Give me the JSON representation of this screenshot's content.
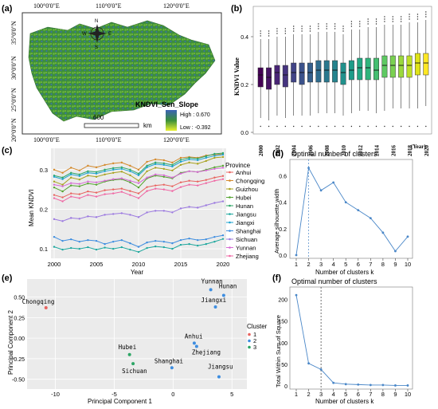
{
  "panel_a": {
    "letter": "(a)",
    "lon_labels": [
      "100°0'0\"E",
      "110°0'0\"E",
      "120°0'0\"E"
    ],
    "lat_labels": [
      "35°0'0\"N",
      "30°0'0\"N",
      "25°0'0\"N",
      "20°0'0\"N"
    ],
    "legend_title": "KNDVI_Sen_Slope",
    "legend_high": "High : 0.670",
    "legend_low": "Low : -0.392",
    "scale_value": "600",
    "scale_unit": "km",
    "compass_letters": [
      "N",
      "S",
      "W",
      "E"
    ],
    "colors": {
      "high": "#3b63b6",
      "mid": "#3a8f3a",
      "low": "#e8f030"
    }
  },
  "panel_b": {
    "letter": "(b)",
    "ylabel": "KNDVI Value",
    "xunit": "(Year)",
    "yticks": [
      "0.4",
      "0.2",
      "0.0"
    ],
    "years_labeled": [
      "2000",
      "2002",
      "2004",
      "2006",
      "2008",
      "2010",
      "2012",
      "2014",
      "2016",
      "2018",
      "2020"
    ]
  },
  "panel_c": {
    "letter": "(c)",
    "xlabel": "Year",
    "ylabel": "Mean KNDVI",
    "legend_title": "Province",
    "xticks": [
      "2000",
      "2005",
      "2010",
      "2015",
      "2020"
    ],
    "yticks": [
      "0.1",
      "0.2",
      "0.3"
    ]
  },
  "panel_d": {
    "letter": "(d)",
    "title": "Optimal number of clusters",
    "xlabel": "Number of clusters k",
    "ylabel": "Average silhouette width",
    "xticks": [
      "1",
      "2",
      "3",
      "4",
      "5",
      "6",
      "7",
      "8",
      "9",
      "10"
    ],
    "yticks": [
      "0.0",
      "0.2",
      "0.4",
      "0.6"
    ]
  },
  "panel_e": {
    "letter": "(e)",
    "xlabel": "Principal Component 1",
    "ylabel": "Principal Component 2",
    "legend_title": "Cluster",
    "xticks": [
      "-10",
      "-5",
      "0",
      "5"
    ],
    "yticks": [
      "0.50",
      "0.25",
      "0.00",
      "-0.25",
      "-0.50"
    ]
  },
  "panel_f": {
    "letter": "(f)",
    "title": "Optimal number of clusters",
    "xlabel": "Number of clusters k",
    "ylabel": "Total Within Sum of Square",
    "xticks": [
      "1",
      "2",
      "3",
      "4",
      "5",
      "6",
      "7",
      "8",
      "9",
      "10"
    ],
    "yticks": [
      "0",
      "50",
      "100",
      "150",
      "200"
    ]
  },
  "chart_data": [
    {
      "id": "b",
      "type": "box",
      "categories": [
        "2000",
        "2001",
        "2002",
        "2003",
        "2004",
        "2005",
        "2006",
        "2007",
        "2008",
        "2009",
        "2010",
        "2011",
        "2012",
        "2013",
        "2014",
        "2015",
        "2016",
        "2017",
        "2018",
        "2019",
        "2020"
      ],
      "median": [
        0.24,
        0.23,
        0.25,
        0.24,
        0.25,
        0.25,
        0.25,
        0.26,
        0.26,
        0.26,
        0.25,
        0.26,
        0.27,
        0.27,
        0.26,
        0.28,
        0.28,
        0.28,
        0.28,
        0.29,
        0.29
      ],
      "q1": [
        0.19,
        0.18,
        0.2,
        0.19,
        0.21,
        0.2,
        0.21,
        0.21,
        0.21,
        0.21,
        0.2,
        0.22,
        0.22,
        0.22,
        0.22,
        0.23,
        0.23,
        0.23,
        0.23,
        0.24,
        0.24
      ],
      "q3": [
        0.27,
        0.27,
        0.28,
        0.28,
        0.29,
        0.29,
        0.29,
        0.3,
        0.3,
        0.3,
        0.29,
        0.3,
        0.31,
        0.31,
        0.31,
        0.32,
        0.32,
        0.32,
        0.32,
        0.33,
        0.33
      ],
      "whisker_low": [
        0.06,
        0.05,
        0.07,
        0.06,
        0.07,
        0.07,
        0.07,
        0.08,
        0.08,
        0.08,
        0.07,
        0.08,
        0.09,
        0.09,
        0.08,
        0.09,
        0.1,
        0.1,
        0.1,
        0.1,
        0.11
      ],
      "whisker_high": [
        0.39,
        0.39,
        0.4,
        0.4,
        0.41,
        0.41,
        0.41,
        0.42,
        0.42,
        0.42,
        0.41,
        0.43,
        0.43,
        0.44,
        0.44,
        0.45,
        0.45,
        0.45,
        0.46,
        0.46,
        0.47
      ],
      "colors": [
        "#440154",
        "#471365",
        "#482475",
        "#463480",
        "#414487",
        "#3b528b",
        "#355f8d",
        "#2f6c8e",
        "#2a788e",
        "#25848e",
        "#21918c",
        "#1e9c89",
        "#22a884",
        "#2fb47c",
        "#44bf70",
        "#5ec962",
        "#7ad151",
        "#9bd93c",
        "#bddf26",
        "#dfe318",
        "#fde725"
      ],
      "ylim": [
        0,
        0.52
      ]
    },
    {
      "id": "c",
      "type": "line",
      "x": [
        2000,
        2001,
        2002,
        2003,
        2004,
        2005,
        2006,
        2007,
        2008,
        2009,
        2010,
        2011,
        2012,
        2013,
        2014,
        2015,
        2016,
        2017,
        2018,
        2019,
        2020
      ],
      "series": [
        {
          "name": "Anhui",
          "color": "#e8635f",
          "values": [
            0.236,
            0.23,
            0.24,
            0.238,
            0.245,
            0.242,
            0.248,
            0.25,
            0.252,
            0.246,
            0.24,
            0.256,
            0.26,
            0.262,
            0.258,
            0.268,
            0.272,
            0.27,
            0.274,
            0.28,
            0.284
          ]
        },
        {
          "name": "Chongqing",
          "color": "#d4892a",
          "values": [
            0.3,
            0.292,
            0.305,
            0.298,
            0.31,
            0.306,
            0.312,
            0.316,
            0.318,
            0.31,
            0.3,
            0.32,
            0.326,
            0.324,
            0.318,
            0.33,
            0.332,
            0.33,
            0.336,
            0.338,
            0.34
          ]
        },
        {
          "name": "Guizhou",
          "color": "#a8a21f",
          "values": [
            0.27,
            0.262,
            0.28,
            0.275,
            0.285,
            0.282,
            0.288,
            0.292,
            0.295,
            0.286,
            0.272,
            0.296,
            0.305,
            0.302,
            0.298,
            0.312,
            0.318,
            0.315,
            0.322,
            0.33,
            0.332
          ]
        },
        {
          "name": "Hubei",
          "color": "#53a32f",
          "values": [
            0.255,
            0.245,
            0.26,
            0.258,
            0.265,
            0.262,
            0.27,
            0.274,
            0.276,
            0.268,
            0.255,
            0.278,
            0.285,
            0.282,
            0.278,
            0.292,
            0.296,
            0.294,
            0.3,
            0.306,
            0.31
          ]
        },
        {
          "name": "Hunan",
          "color": "#2ca665",
          "values": [
            0.285,
            0.28,
            0.292,
            0.288,
            0.296,
            0.294,
            0.3,
            0.304,
            0.306,
            0.3,
            0.29,
            0.31,
            0.318,
            0.316,
            0.312,
            0.325,
            0.33,
            0.328,
            0.334,
            0.34,
            0.342
          ]
        },
        {
          "name": "Jiangsu",
          "color": "#1fa89e",
          "values": [
            0.105,
            0.098,
            0.102,
            0.1,
            0.104,
            0.098,
            0.103,
            0.1,
            0.104,
            0.098,
            0.092,
            0.102,
            0.106,
            0.104,
            0.1,
            0.11,
            0.112,
            0.108,
            0.112,
            0.118,
            0.125
          ]
        },
        {
          "name": "Jiangxi",
          "color": "#1ea3cf",
          "values": [
            0.282,
            0.276,
            0.288,
            0.284,
            0.292,
            0.29,
            0.296,
            0.3,
            0.302,
            0.296,
            0.286,
            0.306,
            0.314,
            0.312,
            0.308,
            0.32,
            0.326,
            0.324,
            0.33,
            0.335,
            0.338
          ]
        },
        {
          "name": "Shanghai",
          "color": "#3d8de0",
          "values": [
            0.13,
            0.12,
            0.124,
            0.118,
            0.122,
            0.12,
            0.112,
            0.118,
            0.122,
            0.114,
            0.105,
            0.116,
            0.12,
            0.118,
            0.114,
            0.122,
            0.126,
            0.122,
            0.124,
            0.13,
            0.134
          ]
        },
        {
          "name": "Sichuan",
          "color": "#9c7ae0",
          "values": [
            0.175,
            0.17,
            0.178,
            0.176,
            0.182,
            0.18,
            0.186,
            0.188,
            0.19,
            0.186,
            0.18,
            0.192,
            0.196,
            0.196,
            0.192,
            0.202,
            0.206,
            0.204,
            0.21,
            0.216,
            0.22
          ]
        },
        {
          "name": "Yunnan",
          "color": "#d66ad4",
          "values": [
            0.262,
            0.258,
            0.266,
            0.264,
            0.27,
            0.268,
            0.272,
            0.276,
            0.278,
            0.272,
            0.266,
            0.28,
            0.288,
            0.286,
            0.28,
            0.29,
            0.296,
            0.294,
            0.298,
            0.302,
            0.305
          ]
        },
        {
          "name": "Zhejiang",
          "color": "#ef68a4",
          "values": [
            0.228,
            0.22,
            0.232,
            0.228,
            0.236,
            0.232,
            0.238,
            0.24,
            0.244,
            0.236,
            0.228,
            0.246,
            0.252,
            0.25,
            0.246,
            0.256,
            0.262,
            0.26,
            0.266,
            0.272,
            0.276
          ]
        }
      ],
      "ylim": [
        0.08,
        0.35
      ]
    },
    {
      "id": "d",
      "type": "line",
      "x": [
        1,
        2,
        3,
        4,
        5,
        6,
        7,
        8,
        9,
        10
      ],
      "values": [
        0.0,
        0.66,
        0.49,
        0.55,
        0.4,
        0.34,
        0.28,
        0.17,
        0.03,
        0.14
      ],
      "optimal_k": 2,
      "ylim": [
        0,
        0.7
      ]
    },
    {
      "id": "e",
      "type": "scatter",
      "points": [
        {
          "label": "Chongqing",
          "x": -10.8,
          "y": 0.37,
          "cluster": "1"
        },
        {
          "label": "Yunnan",
          "x": 3.2,
          "y": 0.59,
          "cluster": "2"
        },
        {
          "label": "Hunan",
          "x": 4.3,
          "y": 0.52,
          "cluster": "2"
        },
        {
          "label": "Jiangxi",
          "x": 3.6,
          "y": 0.38,
          "cluster": "2"
        },
        {
          "label": "Anhui",
          "x": 1.8,
          "y": -0.06,
          "cluster": "2"
        },
        {
          "label": "Zhejiang",
          "x": 2.0,
          "y": -0.1,
          "cluster": "2"
        },
        {
          "label": "Shanghai",
          "x": -0.1,
          "y": -0.36,
          "cluster": "2"
        },
        {
          "label": "Jiangsu",
          "x": 3.9,
          "y": -0.47,
          "cluster": "2"
        },
        {
          "label": "Hubei",
          "x": -3.7,
          "y": -0.2,
          "cluster": "3"
        },
        {
          "label": "Sichuan",
          "x": -3.4,
          "y": -0.31,
          "cluster": "3"
        }
      ],
      "clusters": [
        {
          "name": "1",
          "color": "#e8635f"
        },
        {
          "name": "2",
          "color": "#3d8de0"
        },
        {
          "name": "3",
          "color": "#2ca665"
        }
      ],
      "xlim": [
        -12,
        6
      ],
      "ylim": [
        -0.6,
        0.7
      ]
    },
    {
      "id": "f",
      "type": "line",
      "x": [
        1,
        2,
        3,
        4,
        5,
        6,
        7,
        8,
        9,
        10
      ],
      "values": [
        210,
        52,
        38,
        7,
        4,
        3,
        2,
        2,
        1,
        1
      ],
      "optimal_k": 3,
      "ylim": [
        0,
        225
      ]
    }
  ]
}
